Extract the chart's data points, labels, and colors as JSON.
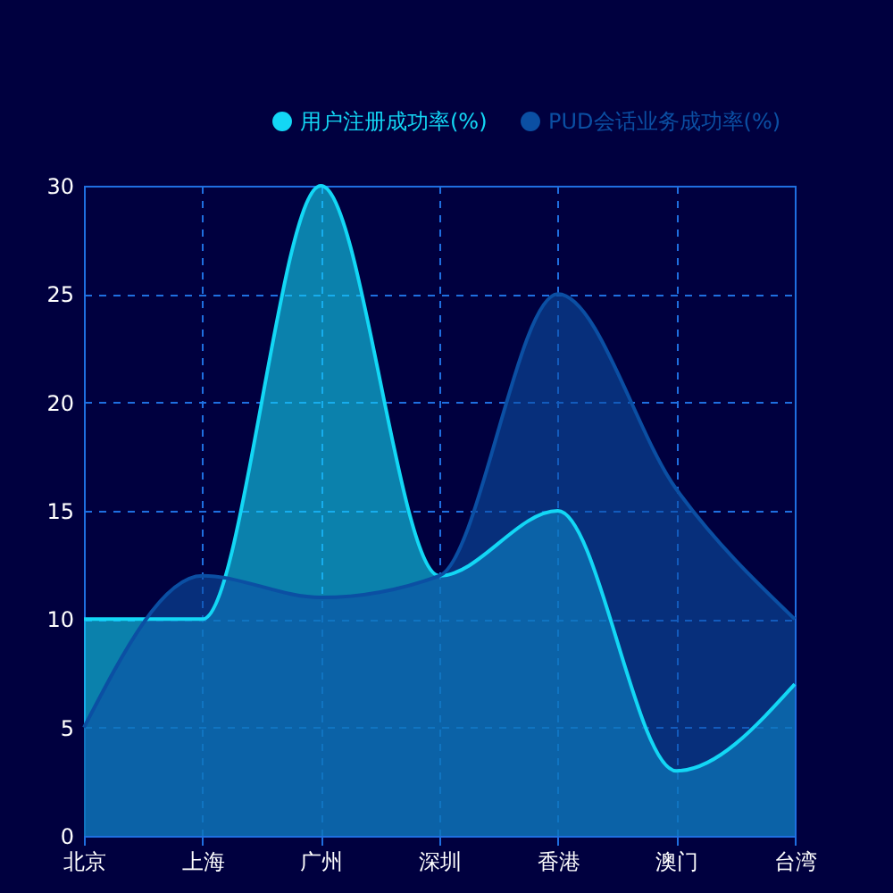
{
  "chart_data": {
    "type": "area",
    "categories": [
      "北京",
      "上海",
      "广州",
      "深圳",
      "香港",
      "澳门",
      "台湾"
    ],
    "series": [
      {
        "name": "用户注册成功率(%)",
        "color": "#13d7f5",
        "values": [
          10,
          10,
          30,
          12,
          15,
          3,
          7
        ]
      },
      {
        "name": "PUD会话业务成功率(%)",
        "color": "#0b4fa3",
        "values": [
          5,
          12,
          11,
          12,
          25,
          16,
          10
        ]
      }
    ],
    "ylim": [
      0,
      30
    ],
    "yticks": [
      0,
      5,
      10,
      15,
      20,
      25,
      30
    ],
    "grid": true,
    "legend": "top right",
    "marker": "none"
  }
}
